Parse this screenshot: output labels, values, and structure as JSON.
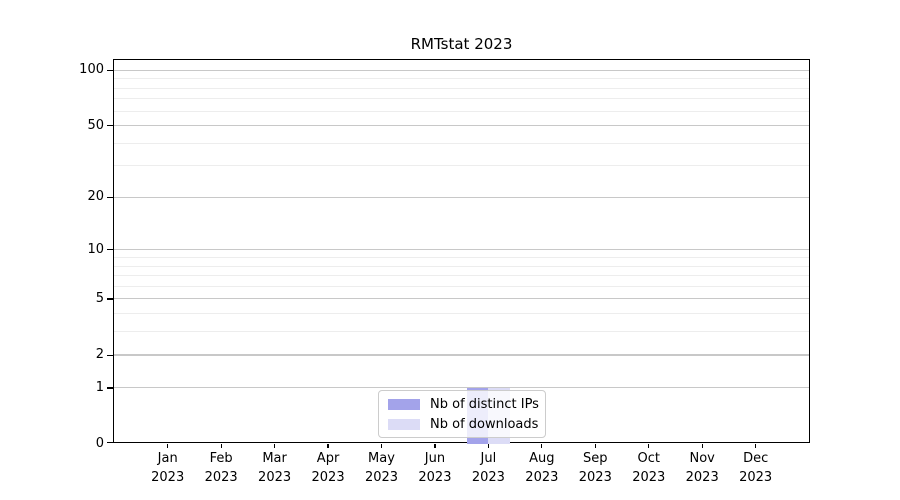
{
  "chart_data": {
    "type": "bar",
    "title": "RMTstat 2023",
    "x_categories": [
      "Jan",
      "Feb",
      "Mar",
      "Apr",
      "May",
      "Jun",
      "Jul",
      "Aug",
      "Sep",
      "Oct",
      "Nov",
      "Dec"
    ],
    "x_year": "2023",
    "y_ticks": [
      0,
      1,
      2,
      5,
      10,
      20,
      50,
      100
    ],
    "y_minor_ticks": [
      3,
      4,
      6,
      7,
      8,
      9,
      30,
      40,
      60,
      70,
      80,
      90
    ],
    "y_scale": "log1p",
    "ylim": [
      0,
      113
    ],
    "grid": true,
    "legend_position": "lower center",
    "series": [
      {
        "name": "Nb of distinct IPs",
        "color": "#a3a3ea",
        "values": [
          0,
          0,
          0,
          0,
          0,
          0,
          1,
          0,
          0,
          0,
          0,
          0
        ]
      },
      {
        "name": "Nb of downloads",
        "color": "#dcdcf6",
        "values": [
          0,
          0,
          0,
          0,
          0,
          0,
          1,
          0,
          0,
          0,
          0,
          0
        ]
      }
    ],
    "colors": {
      "grid_major": "#c8c8c8",
      "grid_minor": "#ededed",
      "spine": "#000000",
      "text": "#000000",
      "legend_border": "#cccccc"
    }
  }
}
